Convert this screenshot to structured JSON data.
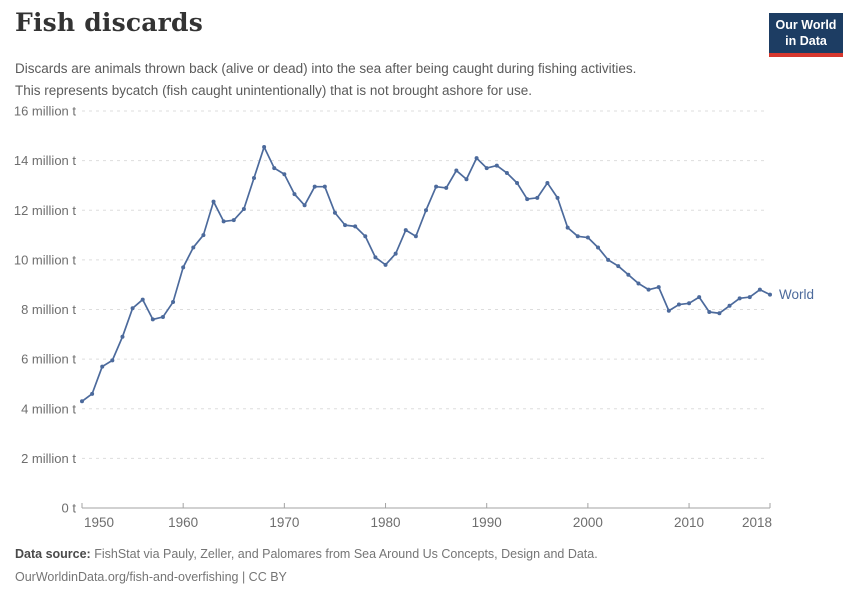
{
  "header": {
    "title": "Fish discards",
    "subtitle_line1": "Discards are animals thrown back (alive or dead) into the sea after being caught during fishing activities.",
    "subtitle_line2": "This represents bycatch (fish caught unintentionally) that is not brought ashore for use.",
    "logo": {
      "line1": "Our World",
      "line2": "in Data"
    }
  },
  "chart_data": {
    "type": "line",
    "title": "Fish discards",
    "xlabel": "",
    "ylabel": "",
    "unit": "million t",
    "xlim": [
      1950,
      2018
    ],
    "ylim": [
      0,
      16
    ],
    "grid": "horizontal-dashed",
    "legend_position": "end-of-line-label",
    "xticks": [
      1950,
      1960,
      1970,
      1980,
      1990,
      2000,
      2010,
      2018
    ],
    "yticks": [
      0,
      2,
      4,
      6,
      8,
      10,
      12,
      14,
      16
    ],
    "ytick_labels": [
      "0 t",
      "2 million t",
      "4 million t",
      "6 million t",
      "8 million t",
      "10 million t",
      "12 million t",
      "14 million t",
      "16 million t"
    ],
    "x": [
      1950,
      1951,
      1952,
      1953,
      1954,
      1955,
      1956,
      1957,
      1958,
      1959,
      1960,
      1961,
      1962,
      1963,
      1964,
      1965,
      1966,
      1967,
      1968,
      1969,
      1970,
      1971,
      1972,
      1973,
      1974,
      1975,
      1976,
      1977,
      1978,
      1979,
      1980,
      1981,
      1982,
      1983,
      1984,
      1985,
      1986,
      1987,
      1988,
      1989,
      1990,
      1991,
      1992,
      1993,
      1994,
      1995,
      1996,
      1997,
      1998,
      1999,
      2000,
      2001,
      2002,
      2003,
      2004,
      2005,
      2006,
      2007,
      2008,
      2009,
      2010,
      2011,
      2012,
      2013,
      2014,
      2015,
      2016,
      2017,
      2018
    ],
    "series": [
      {
        "name": "World",
        "color": "#4C6A9C",
        "values": [
          4.3,
          4.6,
          5.7,
          5.95,
          6.9,
          8.05,
          8.4,
          7.6,
          7.7,
          8.3,
          9.7,
          10.5,
          11,
          12.35,
          11.55,
          11.6,
          12.05,
          13.3,
          14.55,
          13.7,
          13.45,
          12.65,
          12.2,
          12.95,
          12.95,
          11.9,
          11.4,
          11.35,
          10.95,
          10.1,
          9.8,
          10.25,
          11.2,
          10.95,
          12,
          12.95,
          12.9,
          13.6,
          13.25,
          14.1,
          13.7,
          13.8,
          13.5,
          13.1,
          12.45,
          12.5,
          13.1,
          12.5,
          11.3,
          10.95,
          10.9,
          10.5,
          10,
          9.75,
          9.4,
          9.05,
          8.8,
          8.9,
          7.95,
          8.2,
          8.25,
          8.5,
          7.9,
          7.85,
          8.15,
          8.45,
          8.5,
          8.8,
          8.6
        ]
      }
    ],
    "end_label": "World"
  },
  "footer": {
    "source_label": "Data source:",
    "source_text": "FishStat via Pauly, Zeller, and Palomares from Sea Around Us Concepts, Design and Data.",
    "license_line": "OurWorldinData.org/fish-and-overfishing | CC BY"
  },
  "colors": {
    "line": "#4C6A9C",
    "grid": "#dddddd",
    "axis": "#a3a3a3",
    "tick_text": "#6e6e6e",
    "background": "#ffffff",
    "logo_bg": "#1d3d63",
    "logo_bar": "#d7382e"
  }
}
